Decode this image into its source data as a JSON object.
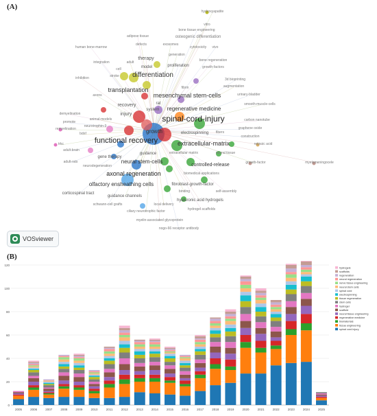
{
  "panel_a_label": "(A)",
  "panel_b_label": "(B)",
  "vosviewer_label": "VOSviewer",
  "network_terms": [
    {
      "t": "hydroxyapatite",
      "c": "#7a7a7a",
      "w": 5
    },
    {
      "t": "vitro",
      "c": "#7a7a7a",
      "w": 5
    },
    {
      "t": "bone tissue engineering",
      "c": "#7a7a7a",
      "w": 5
    },
    {
      "t": "osteogenic differentiation",
      "c": "#7a7a7a",
      "w": 6
    },
    {
      "t": "adipose tissue",
      "c": "#7a7a7a",
      "w": 5
    },
    {
      "t": "exosomes",
      "c": "#7a7a7a",
      "w": 5
    },
    {
      "t": "cytotoxicity",
      "c": "#7a7a7a",
      "w": 5
    },
    {
      "t": "vivo",
      "c": "#7a7a7a",
      "w": 5
    },
    {
      "t": "defects",
      "c": "#7a7a7a",
      "w": 5
    },
    {
      "t": "human bone-marrow",
      "c": "#7a7a7a",
      "w": 5
    },
    {
      "t": "generation",
      "c": "#7a7a7a",
      "w": 5
    },
    {
      "t": "therapy",
      "c": "#555",
      "w": 7
    },
    {
      "t": "integration",
      "c": "#7a7a7a",
      "w": 5
    },
    {
      "t": "adult",
      "c": "#7a7a7a",
      "w": 5
    },
    {
      "t": "bone regeneration",
      "c": "#7a7a7a",
      "w": 5
    },
    {
      "t": "growth-factors",
      "c": "#7a7a7a",
      "w": 5
    },
    {
      "t": "model",
      "c": "#555",
      "w": 6
    },
    {
      "t": "proliferation",
      "c": "#555",
      "w": 6
    },
    {
      "t": "differentiation",
      "c": "#333",
      "w": 10
    },
    {
      "t": "cell",
      "c": "#7a7a7a",
      "w": 5
    },
    {
      "t": "stroke",
      "c": "#7a7a7a",
      "w": 5
    },
    {
      "t": "inhibition",
      "c": "#7a7a7a",
      "w": 5
    },
    {
      "t": "3d bioprinting",
      "c": "#7a7a7a",
      "w": 5
    },
    {
      "t": "augmentation",
      "c": "#7a7a7a",
      "w": 5
    },
    {
      "t": "transplantation",
      "c": "#333",
      "w": 9
    },
    {
      "t": "axons",
      "c": "#7a7a7a",
      "w": 5
    },
    {
      "t": "fibrin",
      "c": "#7a7a7a",
      "w": 5
    },
    {
      "t": "urinary-bladder",
      "c": "#7a7a7a",
      "w": 5
    },
    {
      "t": "mesenchymal stem-cells",
      "c": "#333",
      "w": 9
    },
    {
      "t": "rat",
      "c": "#555",
      "w": 6
    },
    {
      "t": "smooth-muscle-cells",
      "c": "#7a7a7a",
      "w": 5
    },
    {
      "t": "recovery",
      "c": "#555",
      "w": 7
    },
    {
      "t": "system",
      "c": "#555",
      "w": 6
    },
    {
      "t": "regenerative medicine",
      "c": "#333",
      "w": 8
    },
    {
      "t": "demyelination",
      "c": "#7a7a7a",
      "w": 5
    },
    {
      "t": "injury",
      "c": "#555",
      "w": 7
    },
    {
      "t": "spinal-cord-injury",
      "c": "#222",
      "w": 12
    },
    {
      "t": "promote",
      "c": "#7a7a7a",
      "w": 5
    },
    {
      "t": "animal-models",
      "c": "#7a7a7a",
      "w": 5
    },
    {
      "t": "carbon nanotube",
      "c": "#7a7a7a",
      "w": 5
    },
    {
      "t": "remyelination",
      "c": "#7a7a7a",
      "w": 5
    },
    {
      "t": "neurotrophin-3",
      "c": "#7a7a7a",
      "w": 5
    },
    {
      "t": "graphene oxide",
      "c": "#7a7a7a",
      "w": 5
    },
    {
      "t": "bdnf",
      "c": "#7a7a7a",
      "w": 5
    },
    {
      "t": "growth",
      "c": "#333",
      "w": 8
    },
    {
      "t": "electrospinning",
      "c": "#555",
      "w": 6
    },
    {
      "t": "fibers",
      "c": "#7a7a7a",
      "w": 5
    },
    {
      "t": "construction",
      "c": "#7a7a7a",
      "w": 5
    },
    {
      "t": "functional recovery",
      "c": "#222",
      "w": 11
    },
    {
      "t": "extracellular-matrix",
      "c": "#333",
      "w": 9
    },
    {
      "t": "trkc",
      "c": "#7a7a7a",
      "w": 5
    },
    {
      "t": "retinoic acid",
      "c": "#7a7a7a",
      "w": 5
    },
    {
      "t": "adult-brain",
      "c": "#7a7a7a",
      "w": 5
    },
    {
      "t": "extracellular matrix",
      "c": "#7a7a7a",
      "w": 5
    },
    {
      "t": "neural tissue",
      "c": "#7a7a7a",
      "w": 5
    },
    {
      "t": "gene therapy",
      "c": "#555",
      "w": 6
    },
    {
      "t": "guidance",
      "c": "#555",
      "w": 6
    },
    {
      "t": "adult-rats",
      "c": "#7a7a7a",
      "w": 5
    },
    {
      "t": "neural stem-cells",
      "c": "#333",
      "w": 8
    },
    {
      "t": "controlled-release",
      "c": "#333",
      "w": 7
    },
    {
      "t": "growth-factor",
      "c": "#7a7a7a",
      "w": 5
    },
    {
      "t": "myelomeningocele",
      "c": "#7a7a7a",
      "w": 5
    },
    {
      "t": "neurodegeneration",
      "c": "#7a7a7a",
      "w": 5
    },
    {
      "t": "axonal regeneration",
      "c": "#222",
      "w": 9
    },
    {
      "t": "biomedical applications",
      "c": "#7a7a7a",
      "w": 5
    },
    {
      "t": "olfactory ensheathing cells",
      "c": "#333",
      "w": 8
    },
    {
      "t": "fibroblast-growth-factor",
      "c": "#555",
      "w": 6
    },
    {
      "t": "corticospinal tract",
      "c": "#555",
      "w": 6
    },
    {
      "t": "binding",
      "c": "#7a7a7a",
      "w": 5
    },
    {
      "t": "self-assembly",
      "c": "#7a7a7a",
      "w": 5
    },
    {
      "t": "guidance channels",
      "c": "#555",
      "w": 6
    },
    {
      "t": "hyaluronic acid hydrogels",
      "c": "#555",
      "w": 6
    },
    {
      "t": "schwann-cell grafts",
      "c": "#7a7a7a",
      "w": 5
    },
    {
      "t": "local delivery",
      "c": "#7a7a7a",
      "w": 5
    },
    {
      "t": "hydrogel scaffolds",
      "c": "#7a7a7a",
      "w": 5
    },
    {
      "t": "ciliary neurotrophic factor",
      "c": "#7a7a7a",
      "w": 5
    },
    {
      "t": "myelin-associated glycoprotein",
      "c": "#7a7a7a",
      "w": 5
    },
    {
      "t": "nogo-66 receptor antibody",
      "c": "#7a7a7a",
      "w": 5
    }
  ],
  "chart_data": {
    "type": "bar",
    "stacked": true,
    "categories": [
      "2005",
      "2006",
      "2007",
      "2008",
      "2009",
      "2010",
      "2011",
      "2012",
      "2013",
      "2014",
      "2015",
      "2016",
      "2017",
      "2018",
      "2019",
      "2020",
      "2021",
      "2022",
      "2023",
      "2024",
      "2025"
    ],
    "ylim": [
      0,
      120
    ],
    "yticks": [
      0,
      20,
      40,
      60,
      80,
      100,
      120
    ],
    "grid": true,
    "legend_position": "top-right",
    "series": [
      {
        "name": "spinal cord injury",
        "color": "#1f77b4",
        "values": [
          5,
          7,
          6,
          7,
          7,
          6,
          6,
          7,
          11,
          10,
          9,
          8,
          12,
          17,
          19,
          27,
          27,
          34,
          36,
          37,
          4
        ]
      },
      {
        "name": "tissue engineering",
        "color": "#ff7f0e",
        "values": [
          3,
          6,
          3,
          7,
          6,
          4,
          9,
          11,
          9,
          10,
          10,
          8,
          11,
          14,
          11,
          22,
          18,
          14,
          24,
          27,
          2
        ]
      },
      {
        "name": "biomaterials",
        "color": "#2ca02c",
        "values": [
          0,
          2,
          1,
          2,
          2,
          2,
          3,
          4,
          3,
          3,
          2,
          2,
          3,
          4,
          3,
          5,
          4,
          3,
          5,
          6,
          0
        ]
      },
      {
        "name": "regenerative medicine",
        "color": "#d62728",
        "values": [
          1,
          2,
          1,
          2,
          2,
          2,
          3,
          4,
          3,
          3,
          3,
          3,
          3,
          5,
          6,
          6,
          6,
          4,
          7,
          8,
          1
        ]
      },
      {
        "name": "neural tissue engineering",
        "color": "#9467bd",
        "values": [
          1,
          3,
          1,
          3,
          3,
          2,
          3,
          4,
          3,
          4,
          3,
          2,
          3,
          5,
          5,
          6,
          6,
          3,
          6,
          7,
          1
        ]
      },
      {
        "name": "scaffold",
        "color": "#8c564b",
        "values": [
          1,
          3,
          2,
          4,
          4,
          2,
          4,
          5,
          4,
          4,
          4,
          3,
          4,
          5,
          5,
          6,
          5,
          5,
          6,
          6,
          1
        ]
      },
      {
        "name": "hydrogel",
        "color": "#e377c2",
        "values": [
          1,
          2,
          1,
          3,
          3,
          2,
          3,
          5,
          3,
          3,
          3,
          3,
          3,
          4,
          5,
          6,
          5,
          4,
          5,
          5,
          1
        ]
      },
      {
        "name": "stem cells",
        "color": "#7f7f7f",
        "values": [
          0,
          3,
          2,
          3,
          3,
          2,
          4,
          5,
          4,
          4,
          3,
          3,
          4,
          4,
          5,
          6,
          5,
          5,
          6,
          6,
          1
        ]
      },
      {
        "name": "tissue regeneration",
        "color": "#bcbd22",
        "values": [
          0,
          2,
          1,
          2,
          2,
          2,
          3,
          4,
          3,
          3,
          3,
          2,
          3,
          3,
          4,
          5,
          4,
          3,
          4,
          4,
          0
        ]
      },
      {
        "name": "electrospinning",
        "color": "#17becf",
        "values": [
          0,
          1,
          1,
          2,
          2,
          1,
          2,
          3,
          3,
          2,
          2,
          2,
          2,
          3,
          3,
          5,
          4,
          3,
          4,
          4,
          0
        ]
      },
      {
        "name": "spinal cord",
        "color": "#aec7e8",
        "values": [
          0,
          1,
          1,
          2,
          2,
          1,
          2,
          3,
          2,
          2,
          2,
          2,
          2,
          2,
          3,
          3,
          3,
          2,
          3,
          2,
          0
        ]
      },
      {
        "name": "neural stem cells",
        "color": "#ffbb78",
        "values": [
          0,
          1,
          1,
          2,
          2,
          1,
          2,
          3,
          2,
          2,
          1,
          2,
          2,
          2,
          3,
          3,
          3,
          2,
          3,
          2,
          0
        ]
      },
      {
        "name": "nerve tissue engineering",
        "color": "#98df8a",
        "values": [
          0,
          1,
          0,
          2,
          2,
          1,
          2,
          2,
          2,
          2,
          1,
          1,
          2,
          2,
          2,
          3,
          2,
          2,
          3,
          2,
          0
        ]
      },
      {
        "name": "neural regeneration",
        "color": "#ff9896",
        "values": [
          0,
          1,
          0,
          1,
          1,
          1,
          2,
          2,
          2,
          2,
          1,
          1,
          2,
          2,
          2,
          3,
          2,
          2,
          2,
          2,
          0
        ]
      },
      {
        "name": "regeneration",
        "color": "#c5b0d5",
        "values": [
          0,
          1,
          1,
          1,
          1,
          1,
          1,
          2,
          1,
          1,
          1,
          1,
          1,
          2,
          2,
          2,
          2,
          2,
          3,
          2,
          0
        ]
      },
      {
        "name": "scaffolds",
        "color": "#c49c94",
        "values": [
          0,
          1,
          0,
          0,
          1,
          0,
          1,
          2,
          1,
          1,
          1,
          0,
          2,
          1,
          2,
          2,
          2,
          2,
          3,
          3,
          0
        ]
      },
      {
        "name": "hydrogels",
        "color": "#f7b6d2",
        "values": [
          0,
          1,
          0,
          0,
          1,
          0,
          0,
          2,
          0,
          1,
          1,
          0,
          1,
          0,
          2,
          1,
          2,
          0,
          1,
          1,
          0
        ]
      }
    ]
  }
}
